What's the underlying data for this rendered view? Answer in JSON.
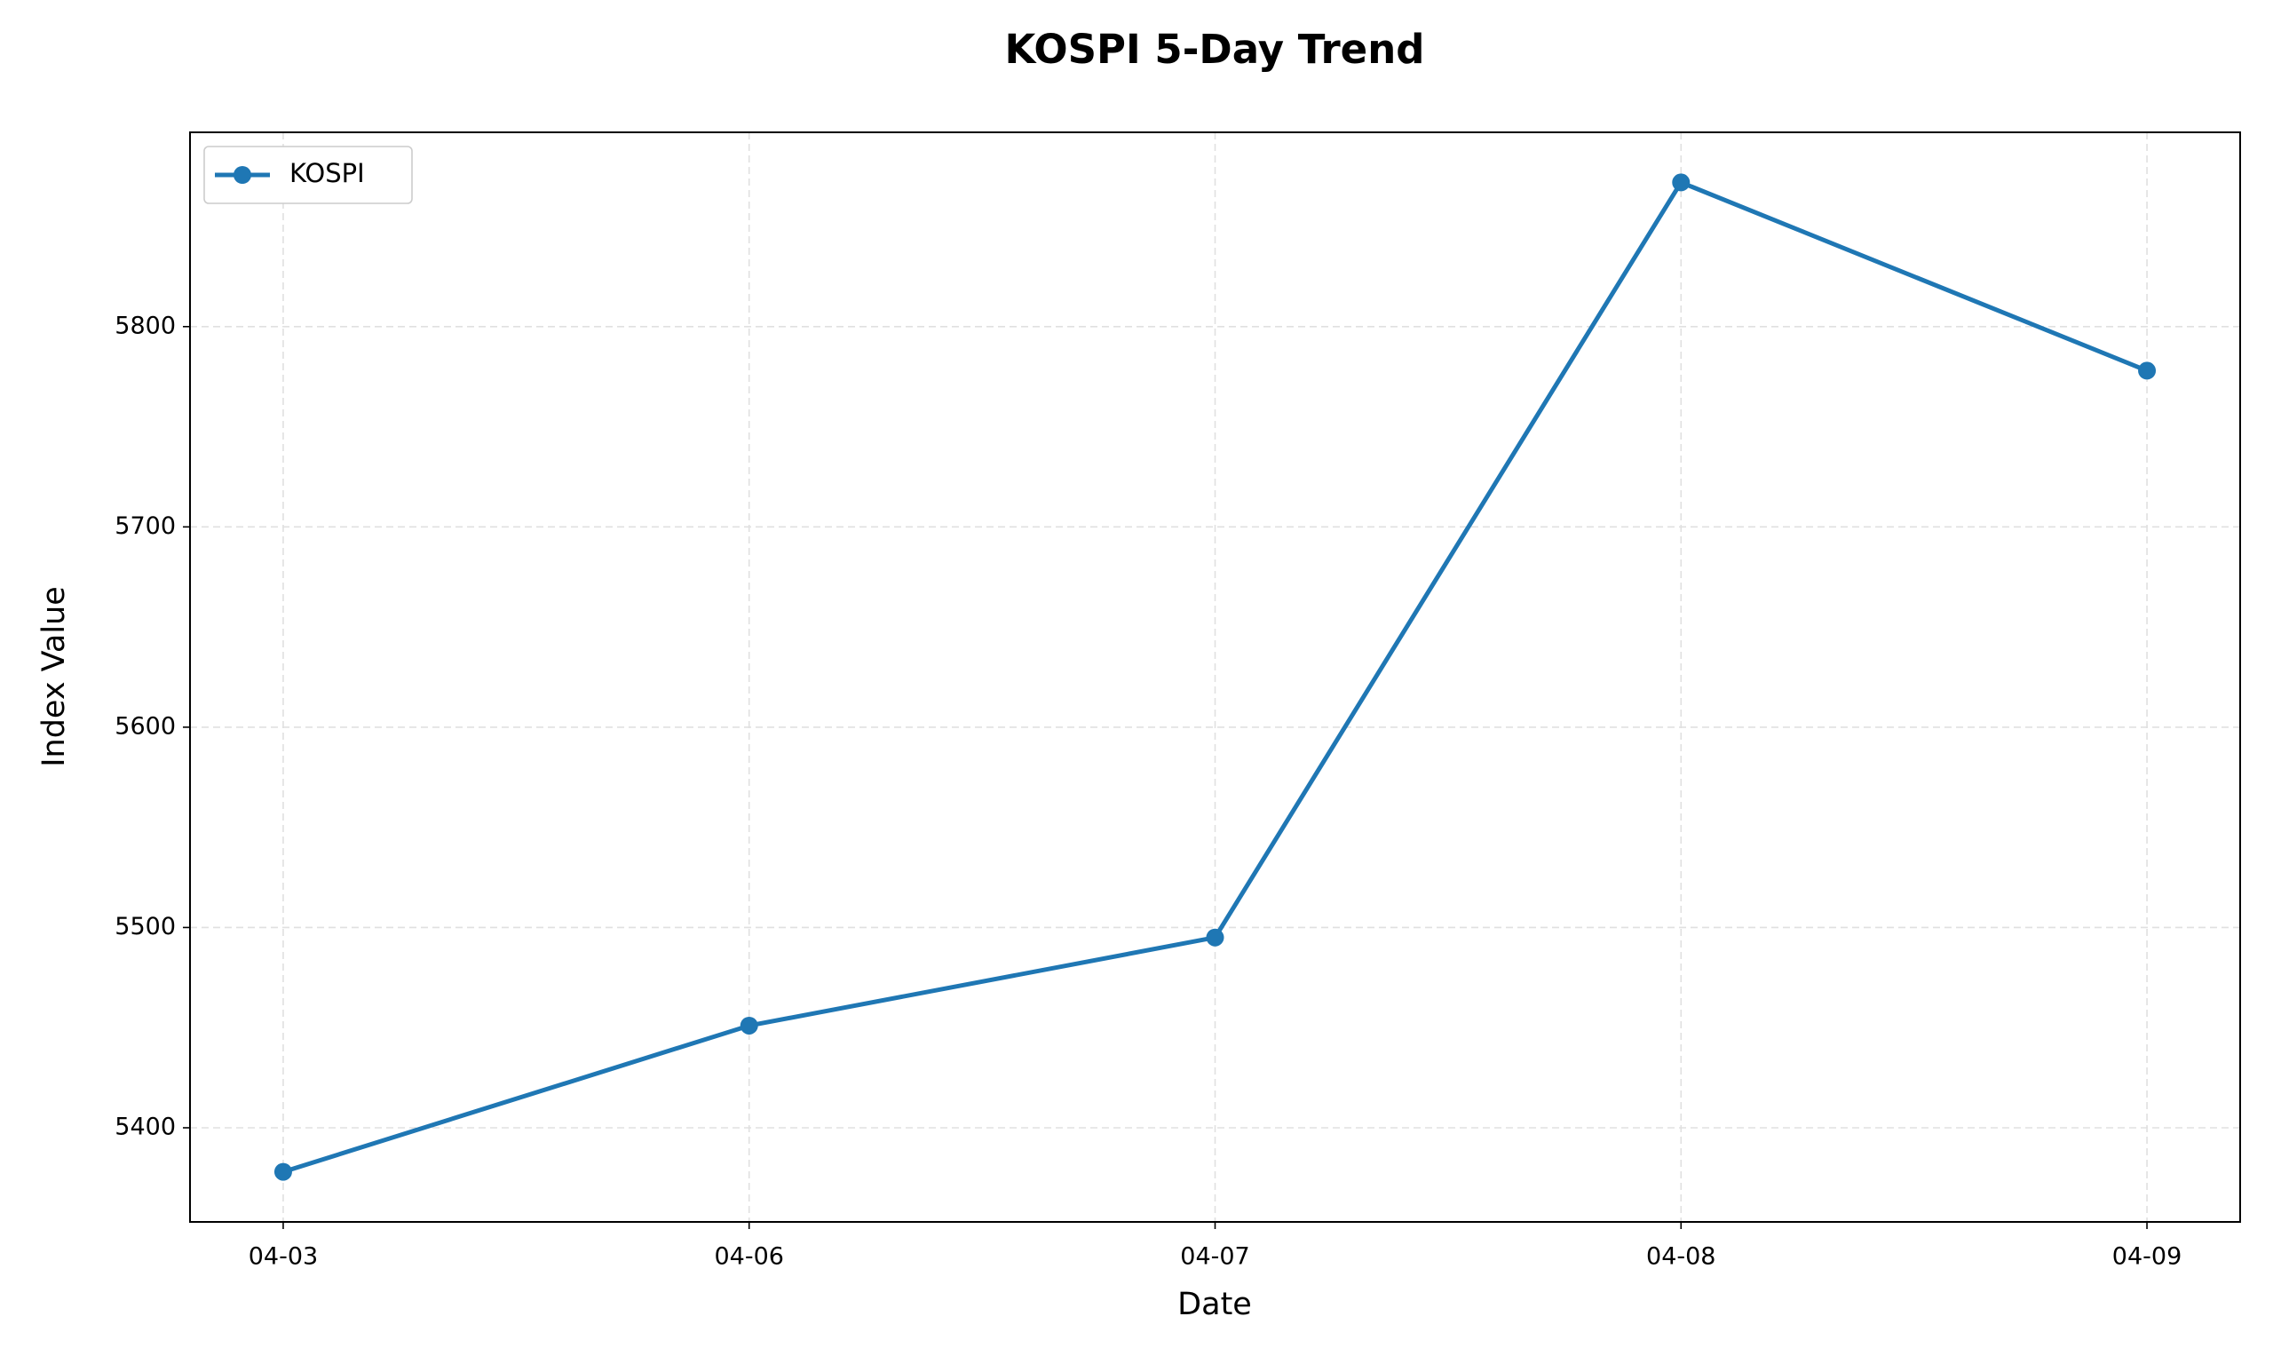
{
  "chart_data": {
    "type": "line",
    "title": "KOSPI 5-Day Trend",
    "x_label": "Date",
    "y_label": "Index Value",
    "categories": [
      "04-03",
      "04-06",
      "04-07",
      "04-08",
      "04-09"
    ],
    "series": [
      {
        "name": "KOSPI",
        "color": "#1f77b4",
        "values": [
          5378,
          5451,
          5495,
          5872,
          5778
        ]
      }
    ],
    "ylim": [
      5353,
      5897
    ],
    "yticks": [
      5400,
      5500,
      5600,
      5700,
      5800
    ],
    "grid": true,
    "legend": "upper left"
  }
}
